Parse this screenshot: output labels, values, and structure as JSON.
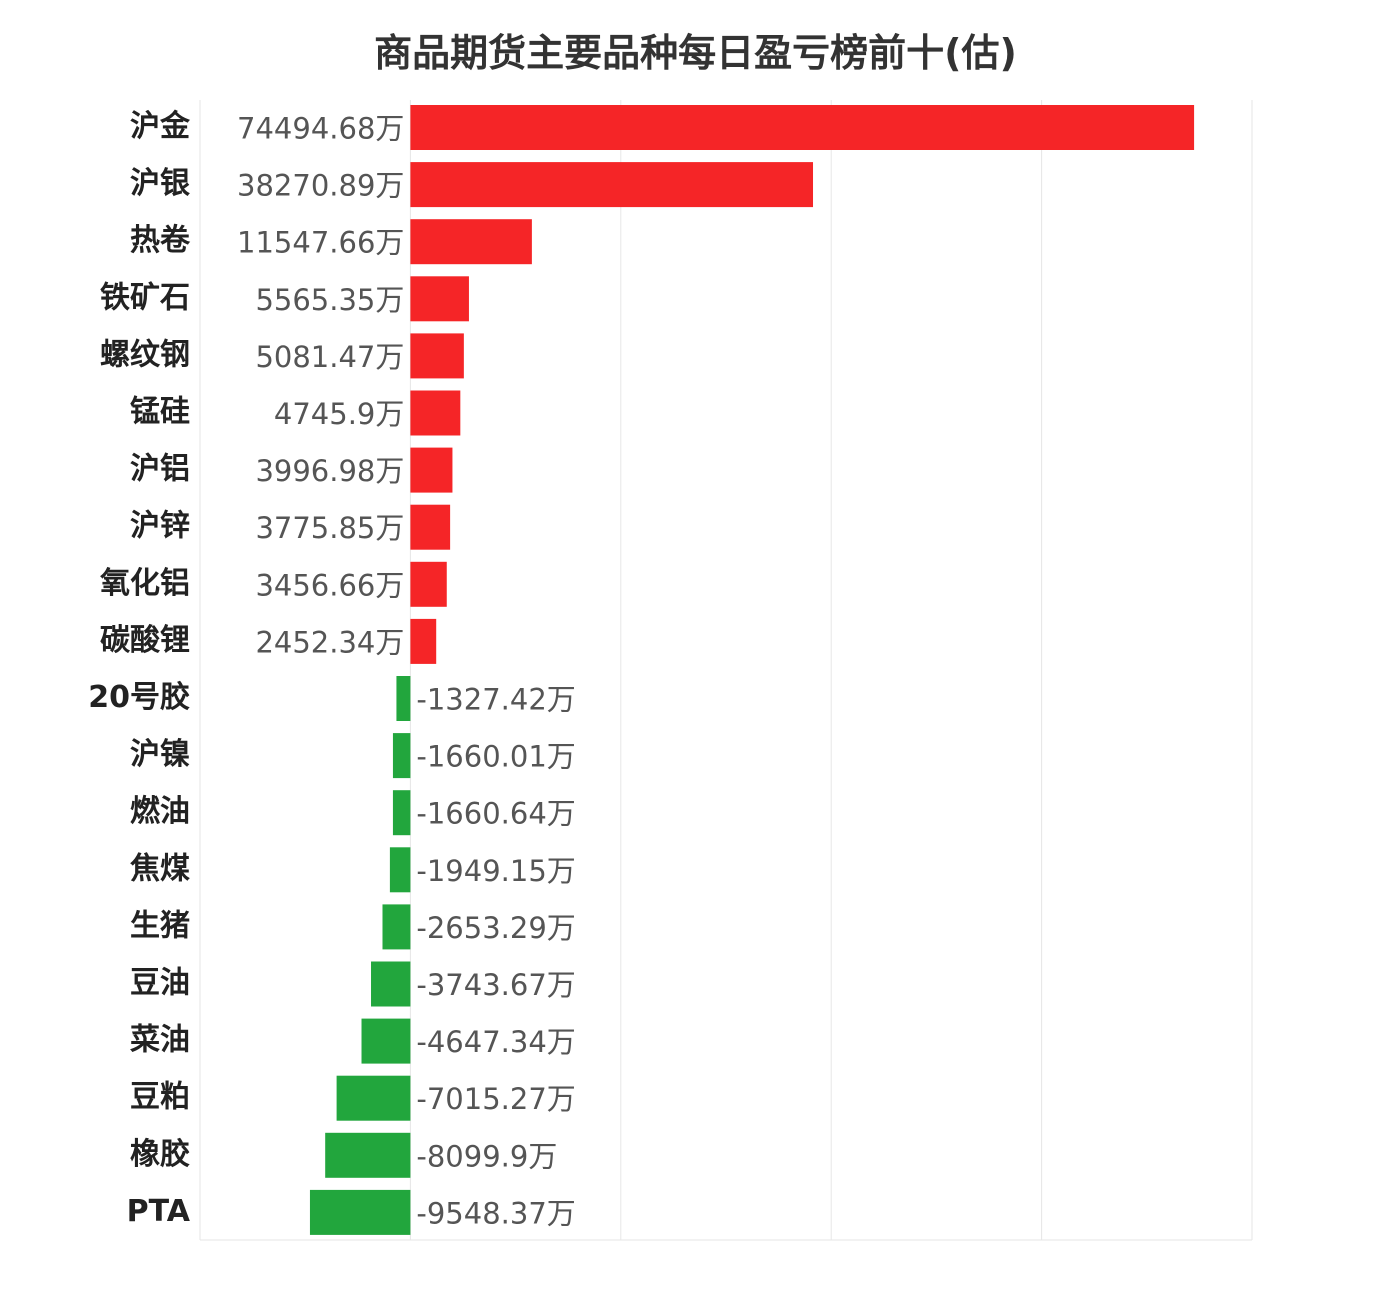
{
  "chart_data": {
    "type": "bar",
    "orientation": "horizontal",
    "title": "商品期货主要品种每日盈亏榜前十(估)",
    "unit_suffix": "万",
    "grid": "vertical",
    "categories": [
      "沪金",
      "沪银",
      "热卷",
      "铁矿石",
      "螺纹钢",
      "锰硅",
      "沪铝",
      "沪锌",
      "氧化铝",
      "碳酸锂",
      "20号胶",
      "沪镍",
      "燃油",
      "焦煤",
      "生猪",
      "豆油",
      "菜油",
      "豆粕",
      "橡胶",
      "PTA"
    ],
    "values": [
      74494.68,
      38270.89,
      11547.66,
      5565.35,
      5081.47,
      4745.9,
      3996.98,
      3775.85,
      3456.66,
      2452.34,
      -1327.42,
      -1660.01,
      -1660.64,
      -1949.15,
      -2653.29,
      -3743.67,
      -4647.34,
      -7015.27,
      -8099.9,
      -9548.37
    ],
    "value_labels": [
      "74494.68万",
      "38270.89万",
      "11547.66万",
      "5565.35万",
      "5081.47万",
      "4745.9万",
      "3996.98万",
      "3775.85万",
      "3456.66万",
      "2452.34万",
      "-1327.42万",
      "-1660.01万",
      "-1660.64万",
      "-1949.15万",
      "-2653.29万",
      "-3743.67万",
      "-4647.34万",
      "-7015.27万",
      "-8099.9万",
      "-9548.37万"
    ],
    "xlim": [
      -20000,
      80000
    ],
    "colors": {
      "positive": "#f52527",
      "negative": "#22a63d",
      "grid": "#e6e6e6"
    }
  }
}
